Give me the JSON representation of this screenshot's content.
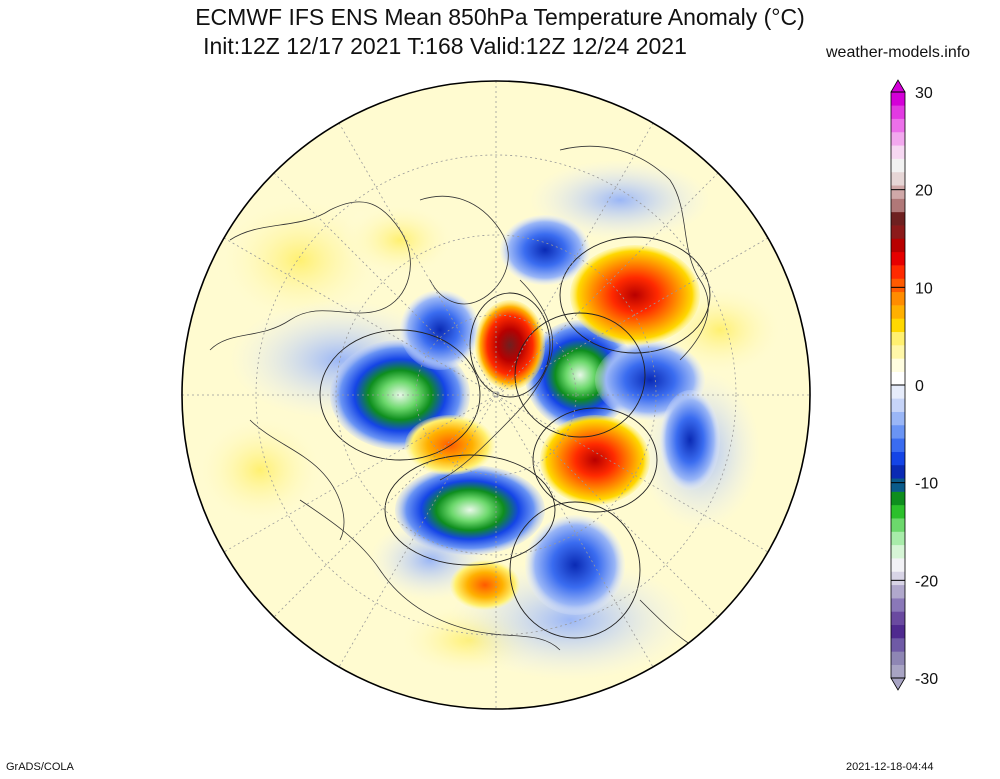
{
  "header": {
    "title_line1": "ECMWF IFS ENS Mean 850hPa Temperature Anomaly (°C)",
    "title_line2": "Init:12Z 12/17 2021  T:168 Valid:12Z 12/24 2021",
    "site": "weather-models.info"
  },
  "footer": {
    "left": "GrADS/COLA",
    "right": "2021-12-18-04:44"
  },
  "colorbar": {
    "ticks": [
      "30",
      "20",
      "10",
      "0",
      "-10",
      "-20",
      "-30"
    ],
    "colors": [
      "#a8a4c4",
      "#8e86b4",
      "#6f5aa6",
      "#4f2a8f",
      "#6a4aa0",
      "#8a78b8",
      "#b0a8cc",
      "#d8d4e6",
      "#f2f2f6",
      "#d6f5d6",
      "#a8ecaa",
      "#6cd86c",
      "#2cc02c",
      "#0e8e1e",
      "#0a5a8a",
      "#0a2ab4",
      "#1444e6",
      "#3a6cf0",
      "#6a94f4",
      "#9ab6f6",
      "#c6d4f8",
      "#e6ecfb",
      "#ffffff",
      "#fffde0",
      "#fff7a8",
      "#fff070",
      "#ffd800",
      "#ffb000",
      "#ff8c00",
      "#ff5a00",
      "#ff2a00",
      "#e60000",
      "#b80000",
      "#8c1a1a",
      "#6e2020",
      "#b07878",
      "#d0a8a8",
      "#e6d6d6",
      "#f2f2f2",
      "#f6d8f2",
      "#f2a8ee",
      "#ec70ea",
      "#e23ae2",
      "#d400d8"
    ]
  }
}
